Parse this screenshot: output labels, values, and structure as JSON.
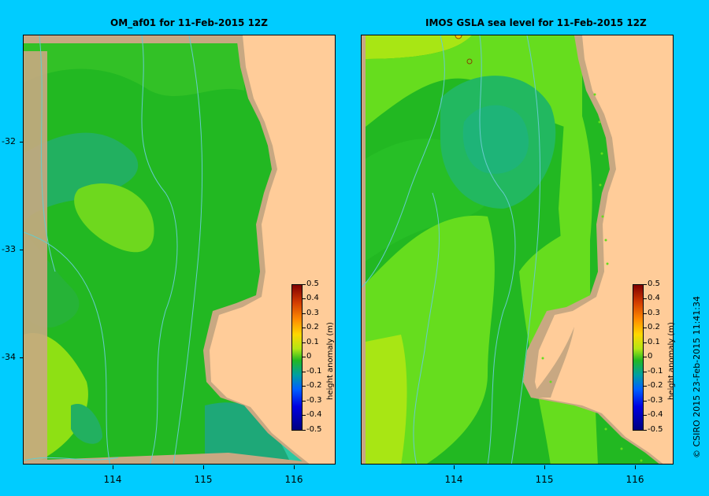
{
  "panels": [
    {
      "title": "OM_af01  for 11-Feb-2015 12Z"
    },
    {
      "title": "IMOS GSLA sea level  for 11-Feb-2015 12Z"
    }
  ],
  "map": {
    "lon_ticks": [
      "114",
      "115",
      "116"
    ],
    "lat_ticks": [
      "-32",
      "-33",
      "-34"
    ]
  },
  "colorbar": {
    "label": "height anomaly (m)",
    "ticks": [
      "0.5",
      "0.4",
      "0.3",
      "0.2",
      "0.1",
      "0",
      "-0.1",
      "-0.2",
      "-0.3",
      "-0.4",
      "-0.5"
    ],
    "range": [
      -0.5,
      0.5
    ]
  },
  "colors": {
    "background": "#00ccff",
    "land": "#ffcc99",
    "coast_strip": "#c8a882",
    "bathymetry": "#66cccc"
  },
  "copyright": "© CSIRO 2015   23-Feb-2015 11:41:34"
}
